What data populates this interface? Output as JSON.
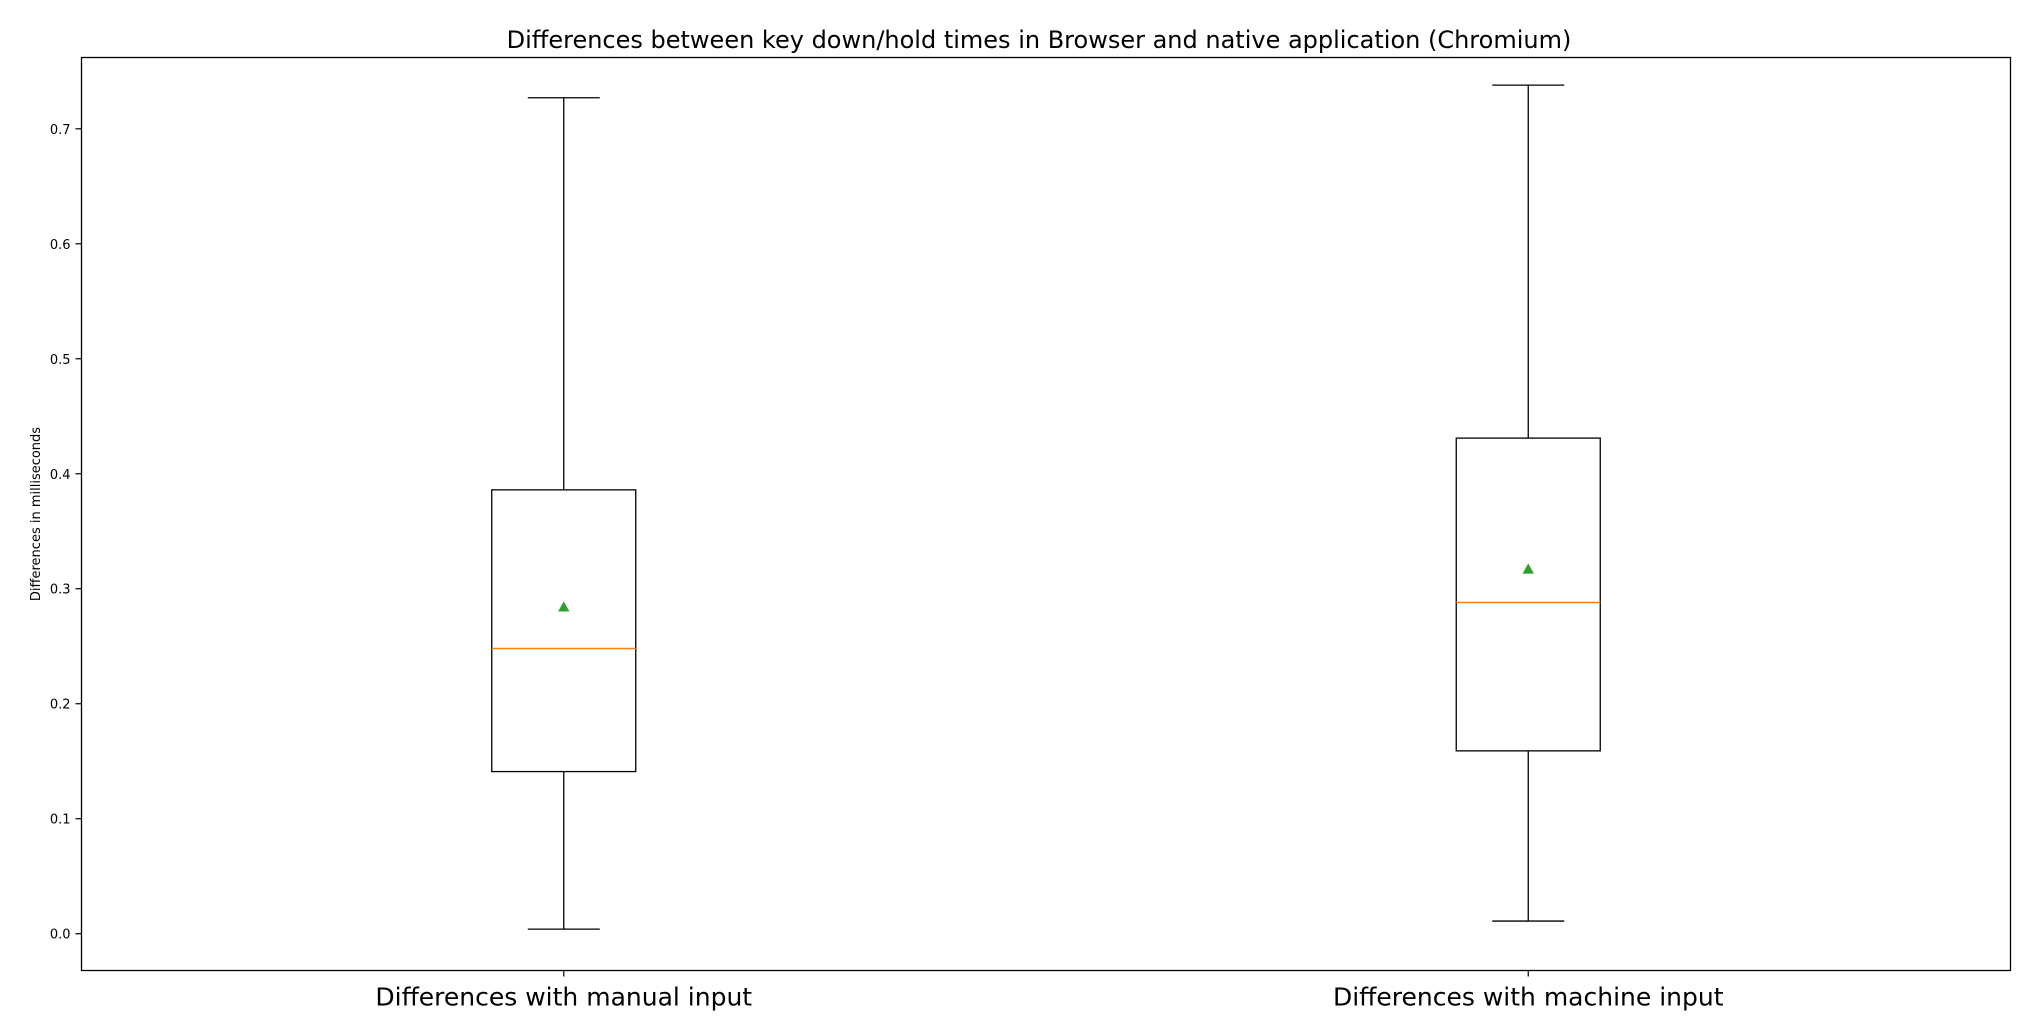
{
  "chart_data": {
    "type": "boxplot",
    "title": "Differences between key down/hold times in Browser and native application (Chromium)",
    "xlabel": "",
    "ylabel": "Differences in milliseconds",
    "categories": [
      "Differences with manual input",
      "Differences with machine input"
    ],
    "ylim": [
      -0.032,
      0.762
    ],
    "yticks": [
      0.0,
      0.1,
      0.2,
      0.3,
      0.4,
      0.5,
      0.6,
      0.7
    ],
    "ytick_labels": [
      "0.0",
      "0.1",
      "0.2",
      "0.3",
      "0.4",
      "0.5",
      "0.6",
      "0.7"
    ],
    "grid": false,
    "show_means": true,
    "boxes": [
      {
        "category": "Differences with manual input",
        "whisker_low": 0.004,
        "q1": 0.141,
        "median": 0.248,
        "mean": 0.284,
        "q3": 0.386,
        "whisker_high": 0.727
      },
      {
        "category": "Differences with machine input",
        "whisker_low": 0.011,
        "q1": 0.159,
        "median": 0.288,
        "mean": 0.317,
        "q3": 0.431,
        "whisker_high": 0.738
      }
    ],
    "colors": {
      "box": "#000000",
      "median": "#ff7f0e",
      "mean_marker": "#2ca02c",
      "axes": "#000000",
      "background": "#ffffff"
    }
  }
}
